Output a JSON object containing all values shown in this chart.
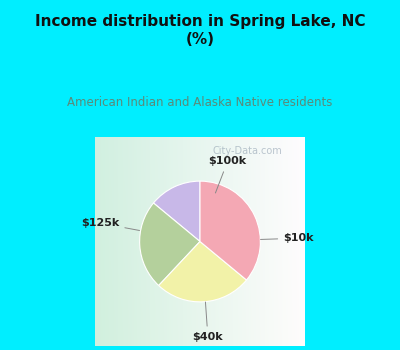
{
  "title": "Income distribution in Spring Lake, NC\n(%)",
  "subtitle": "American Indian and Alaska Native residents",
  "title_color": "#111111",
  "subtitle_color": "#5a8a7a",
  "bg_color": "#00eeff",
  "chart_bg_color": "#dff5ea",
  "labels": [
    "$100k",
    "$10k",
    "$40k",
    "$125k"
  ],
  "sizes": [
    14,
    24,
    26,
    36
  ],
  "colors": [
    "#c8b8e8",
    "#b8d4a0",
    "#f0f0a8",
    "#f4aaB8"
  ],
  "pie_colors": [
    "#c8b8e8",
    "#b4d09c",
    "#f2f2a8",
    "#f4a8b4"
  ],
  "startangle": 90,
  "watermark": "City-Data.com",
  "label_fontsize": 8,
  "title_fontsize": 11,
  "subtitle_fontsize": 8.5
}
